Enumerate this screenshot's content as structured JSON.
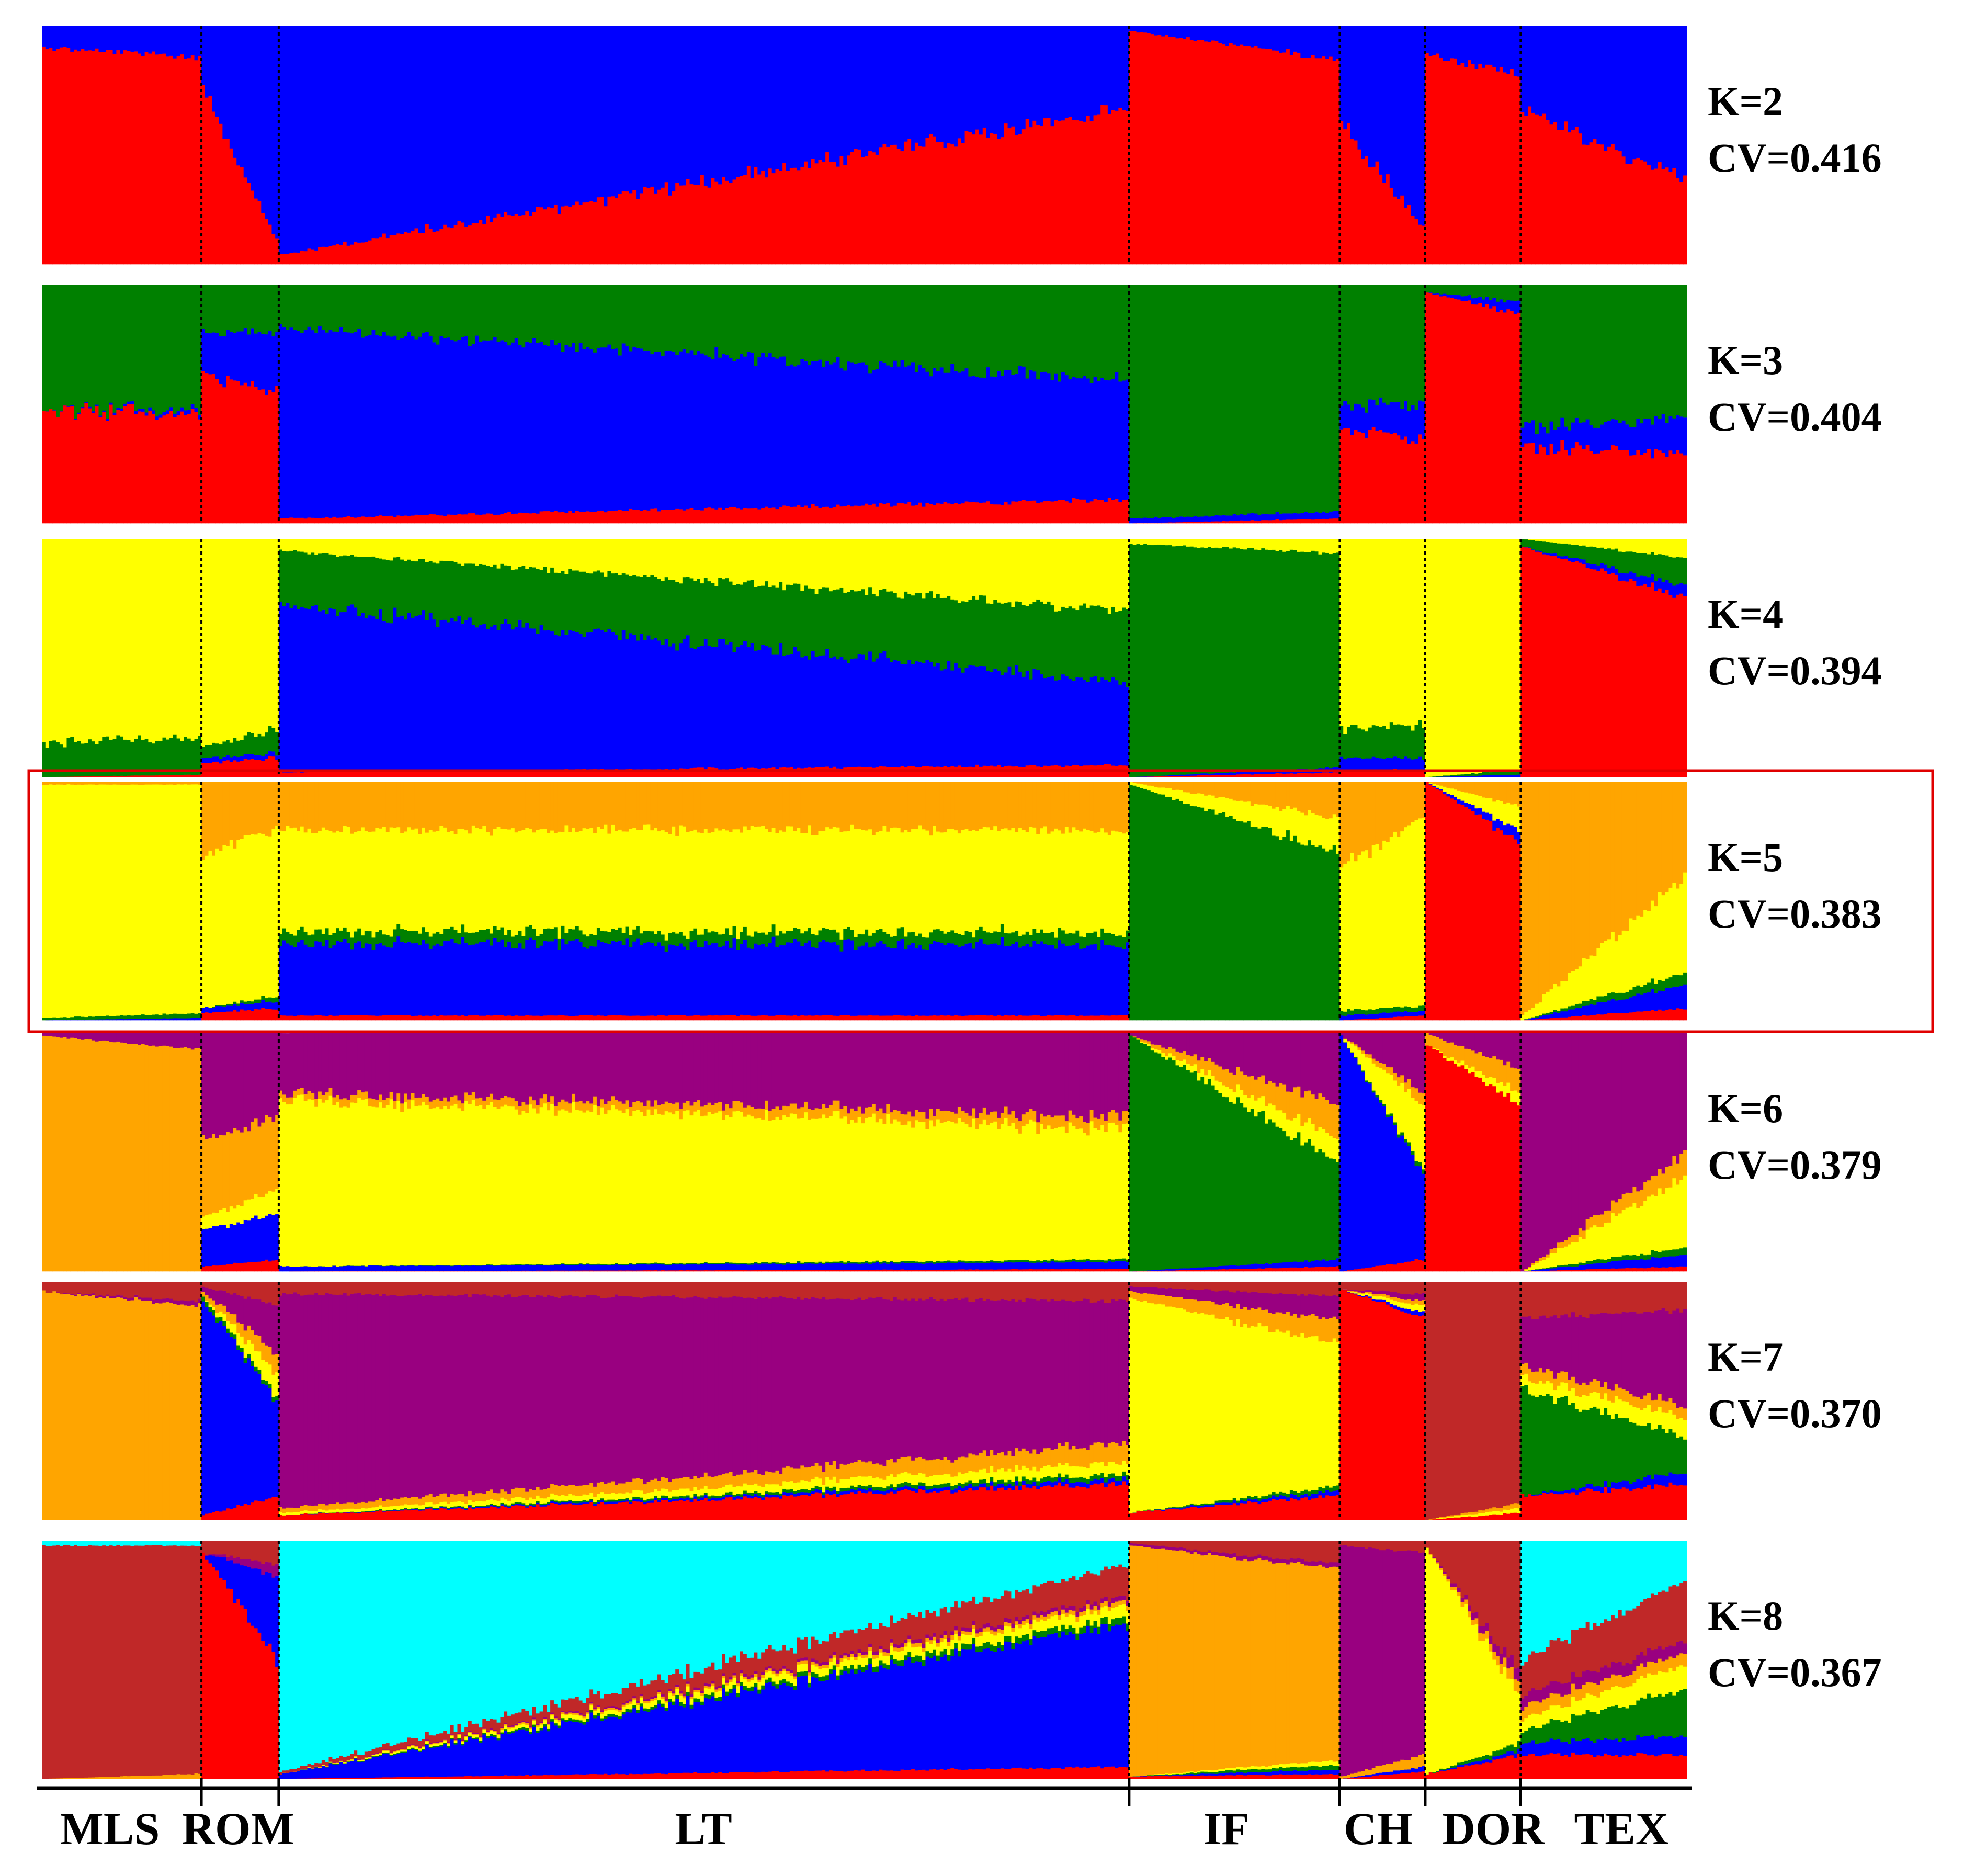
{
  "chart_data": {
    "type": "admixture-stacked-bar",
    "colors": {
      "red": "#ff0000",
      "blue": "#0000ff",
      "green": "#008000",
      "yellow": "#ffff00",
      "orange": "#ffa500",
      "purple": "#990080",
      "brown": "#c02828",
      "cyan": "#00ffff"
    },
    "populations": [
      {
        "label": "MLS",
        "size": 0.097
      },
      {
        "label": "ROM",
        "size": 0.047
      },
      {
        "label": "LT",
        "size": 0.517
      },
      {
        "label": "IF",
        "size": 0.128
      },
      {
        "label": "CH",
        "size": 0.052
      },
      {
        "label": "DOR",
        "size": 0.058
      },
      {
        "label": "TEX",
        "size": 0.101
      }
    ],
    "panels": [
      {
        "k_label": "K=2",
        "cv_label": "CV=0.416",
        "highlighted": false,
        "groups": [
          {
            "start": [
              0.91,
              0.09
            ],
            "end": [
              0.87,
              0.13
            ]
          },
          {
            "start": [
              0.75,
              0.25
            ],
            "end": [
              0.1,
              0.9
            ]
          },
          {
            "start": [
              0.04,
              0.96
            ],
            "end": [
              0.65,
              0.35
            ]
          },
          {
            "start": [
              0.98,
              0.02
            ],
            "end": [
              0.86,
              0.14
            ]
          },
          {
            "start": [
              0.6,
              0.4
            ],
            "end": [
              0.15,
              0.85
            ]
          },
          {
            "start": [
              0.88,
              0.12
            ],
            "end": [
              0.8,
              0.2
            ]
          },
          {
            "start": [
              0.65,
              0.35
            ],
            "end": [
              0.35,
              0.65
            ]
          }
        ],
        "colors": [
          "red",
          "blue"
        ]
      },
      {
        "k_label": "K=3",
        "cv_label": "CV=0.404",
        "highlighted": false,
        "groups": [
          {
            "start": [
              0.48,
              0.0,
              0.52
            ],
            "end": [
              0.46,
              0.02,
              0.52
            ]
          },
          {
            "start": [
              0.62,
              0.18,
              0.2
            ],
            "end": [
              0.55,
              0.25,
              0.2
            ]
          },
          {
            "start": [
              0.02,
              0.8,
              0.18
            ],
            "end": [
              0.1,
              0.5,
              0.4
            ]
          },
          {
            "start": [
              0.0,
              0.02,
              0.98
            ],
            "end": [
              0.02,
              0.03,
              0.95
            ]
          },
          {
            "start": [
              0.4,
              0.1,
              0.5
            ],
            "end": [
              0.35,
              0.15,
              0.5
            ]
          },
          {
            "start": [
              0.97,
              0.0,
              0.03
            ],
            "end": [
              0.88,
              0.05,
              0.07
            ]
          },
          {
            "start": [
              0.32,
              0.08,
              0.6
            ],
            "end": [
              0.3,
              0.15,
              0.55
            ]
          }
        ],
        "colors": [
          "red",
          "blue",
          "green"
        ]
      },
      {
        "k_label": "K=4",
        "cv_label": "CV=0.394",
        "highlighted": false,
        "groups": [
          {
            "start": [
              0.0,
              0.0,
              0.14,
              0.86
            ],
            "end": [
              0.01,
              0.0,
              0.16,
              0.83
            ]
          },
          {
            "start": [
              0.06,
              0.02,
              0.05,
              0.87
            ],
            "end": [
              0.08,
              0.02,
              0.1,
              0.8
            ]
          },
          {
            "start": [
              0.02,
              0.7,
              0.23,
              0.05
            ],
            "end": [
              0.05,
              0.35,
              0.3,
              0.3
            ]
          },
          {
            "start": [
              0.0,
              0.0,
              0.98,
              0.02
            ],
            "end": [
              0.02,
              0.02,
              0.9,
              0.06
            ]
          },
          {
            "start": [
              0.03,
              0.05,
              0.12,
              0.8
            ],
            "end": [
              0.03,
              0.05,
              0.14,
              0.78
            ]
          },
          {
            "start": [
              0.0,
              0.0,
              0.0,
              1.0
            ],
            "end": [
              0.0,
              0.01,
              0.02,
              0.97
            ]
          },
          {
            "start": [
              0.97,
              0.0,
              0.03,
              0.0
            ],
            "end": [
              0.75,
              0.05,
              0.12,
              0.08
            ]
          }
        ],
        "colors": [
          "red",
          "blue",
          "green",
          "yellow"
        ]
      },
      {
        "k_label": "K=5",
        "cv_label": "CV=0.383",
        "highlighted": true,
        "groups": [
          {
            "start": [
              0.0,
              0.0,
              0.01,
              0.98,
              0.01
            ],
            "end": [
              0.0,
              0.01,
              0.02,
              0.96,
              0.01
            ]
          },
          {
            "start": [
              0.03,
              0.02,
              0.0,
              0.65,
              0.3
            ],
            "end": [
              0.05,
              0.03,
              0.02,
              0.7,
              0.2
            ]
          },
          {
            "start": [
              0.02,
              0.3,
              0.05,
              0.43,
              0.2
            ],
            "end": [
              0.02,
              0.3,
              0.05,
              0.43,
              0.2
            ]
          },
          {
            "start": [
              0.0,
              0.0,
              0.99,
              0.01,
              0.0
            ],
            "end": [
              0.0,
              0.0,
              0.7,
              0.15,
              0.15
            ]
          },
          {
            "start": [
              0.0,
              0.02,
              0.02,
              0.6,
              0.36
            ],
            "end": [
              0.02,
              0.02,
              0.02,
              0.8,
              0.14
            ]
          },
          {
            "start": [
              1.0,
              0.0,
              0.0,
              0.0,
              0.0
            ],
            "end": [
              0.75,
              0.05,
              0.0,
              0.1,
              0.1
            ]
          },
          {
            "start": [
              0.0,
              0.0,
              0.0,
              0.02,
              0.98
            ],
            "end": [
              0.05,
              0.1,
              0.05,
              0.4,
              0.4
            ]
          }
        ],
        "colors": [
          "red",
          "blue",
          "green",
          "yellow",
          "orange"
        ]
      },
      {
        "k_label": "K=6",
        "cv_label": "CV=0.379",
        "highlighted": false,
        "groups": [
          {
            "start": [
              0.0,
              0.0,
              0.0,
              0.0,
              0.99,
              0.01
            ],
            "end": [
              0.0,
              0.0,
              0.0,
              0.0,
              0.93,
              0.07
            ]
          },
          {
            "start": [
              0.02,
              0.15,
              0.0,
              0.05,
              0.32,
              0.46
            ],
            "end": [
              0.05,
              0.2,
              0.0,
              0.1,
              0.3,
              0.35
            ]
          },
          {
            "start": [
              0.0,
              0.02,
              0.0,
              0.7,
              0.03,
              0.25
            ],
            "end": [
              0.01,
              0.03,
              0.01,
              0.55,
              0.05,
              0.35
            ]
          },
          {
            "start": [
              0.0,
              0.0,
              0.99,
              0.0,
              0.0,
              0.01
            ],
            "end": [
              0.02,
              0.03,
              0.4,
              0.1,
              0.15,
              0.3
            ]
          },
          {
            "start": [
              0.0,
              0.99,
              0.0,
              0.0,
              0.0,
              0.01
            ],
            "end": [
              0.05,
              0.35,
              0.02,
              0.28,
              0.05,
              0.25
            ]
          },
          {
            "start": [
              0.95,
              0.0,
              0.0,
              0.0,
              0.05,
              0.0
            ],
            "end": [
              0.7,
              0.0,
              0.0,
              0.05,
              0.1,
              0.15
            ]
          },
          {
            "start": [
              0.0,
              0.0,
              0.0,
              0.0,
              0.0,
              1.0
            ],
            "end": [
              0.02,
              0.05,
              0.03,
              0.3,
              0.1,
              0.5
            ]
          }
        ],
        "colors": [
          "red",
          "blue",
          "green",
          "yellow",
          "orange",
          "purple"
        ]
      },
      {
        "k_label": "K=7",
        "cv_label": "CV=0.370",
        "highlighted": false,
        "groups": [
          {
            "start": [
              0.0,
              0.0,
              0.0,
              0.0,
              0.96,
              0.0,
              0.04
            ],
            "end": [
              0.0,
              0.0,
              0.0,
              0.0,
              0.9,
              0.02,
              0.08
            ]
          },
          {
            "start": [
              0.02,
              0.9,
              0.02,
              0.0,
              0.02,
              0.02,
              0.02
            ],
            "end": [
              0.1,
              0.4,
              0.02,
              0.1,
              0.08,
              0.2,
              0.1
            ]
          },
          {
            "start": [
              0.02,
              0.0,
              0.0,
              0.01,
              0.02,
              0.9,
              0.05
            ],
            "end": [
              0.15,
              0.02,
              0.02,
              0.05,
              0.08,
              0.6,
              0.08
            ]
          },
          {
            "start": [
              0.03,
              0.0,
              0.0,
              0.9,
              0.03,
              0.02,
              0.02
            ],
            "end": [
              0.1,
              0.02,
              0.02,
              0.6,
              0.1,
              0.1,
              0.06
            ]
          },
          {
            "start": [
              0.97,
              0.0,
              0.0,
              0.0,
              0.0,
              0.0,
              0.03
            ],
            "end": [
              0.85,
              0.02,
              0.0,
              0.03,
              0.02,
              0.03,
              0.05
            ]
          },
          {
            "start": [
              0.0,
              0.0,
              0.0,
              0.0,
              0.0,
              0.0,
              1.0
            ],
            "end": [
              0.03,
              0.0,
              0.0,
              0.02,
              0.02,
              0.0,
              0.93
            ]
          },
          {
            "start": [
              0.1,
              0.0,
              0.45,
              0.05,
              0.05,
              0.2,
              0.15
            ],
            "end": [
              0.15,
              0.05,
              0.15,
              0.08,
              0.05,
              0.4,
              0.12
            ]
          }
        ],
        "colors": [
          "red",
          "blue",
          "green",
          "yellow",
          "orange",
          "purple",
          "brown"
        ]
      },
      {
        "k_label": "K=8",
        "cv_label": "CV=0.367",
        "highlighted": false,
        "groups": [
          {
            "start": [
              0.0,
              0.0,
              0.0,
              0.0,
              0.0,
              0.0,
              0.98,
              0.02
            ],
            "end": [
              0.0,
              0.0,
              0.0,
              0.0,
              0.02,
              0.0,
              0.96,
              0.02
            ]
          },
          {
            "start": [
              0.95,
              0.0,
              0.0,
              0.0,
              0.0,
              0.0,
              0.05,
              0.0
            ],
            "end": [
              0.5,
              0.35,
              0.0,
              0.0,
              0.0,
              0.05,
              0.1,
              0.0
            ]
          },
          {
            "start": [
              0.0,
              0.02,
              0.0,
              0.0,
              0.0,
              0.0,
              0.01,
              0.97
            ],
            "end": [
              0.05,
              0.6,
              0.03,
              0.05,
              0.02,
              0.02,
              0.13,
              0.1
            ]
          },
          {
            "start": [
              0.01,
              0.0,
              0.0,
              0.0,
              0.97,
              0.01,
              0.01,
              0.0
            ],
            "end": [
              0.02,
              0.02,
              0.02,
              0.02,
              0.8,
              0.02,
              0.1,
              0.0
            ]
          },
          {
            "start": [
              0.0,
              0.0,
              0.0,
              0.0,
              0.01,
              0.97,
              0.02,
              0.0
            ],
            "end": [
              0.03,
              0.02,
              0.0,
              0.0,
              0.05,
              0.85,
              0.05,
              0.0
            ]
          },
          {
            "start": [
              0.02,
              0.0,
              0.0,
              0.95,
              0.0,
              0.0,
              0.03,
              0.0
            ],
            "end": [
              0.1,
              0.02,
              0.03,
              0.2,
              0.05,
              0.05,
              0.55,
              0.0
            ]
          },
          {
            "start": [
              0.1,
              0.05,
              0.05,
              0.05,
              0.05,
              0.05,
              0.15,
              0.5
            ],
            "end": [
              0.1,
              0.08,
              0.2,
              0.1,
              0.05,
              0.05,
              0.25,
              0.17
            ]
          }
        ],
        "colors": [
          "red",
          "blue",
          "green",
          "yellow",
          "orange",
          "purple",
          "brown",
          "cyan"
        ]
      }
    ]
  }
}
